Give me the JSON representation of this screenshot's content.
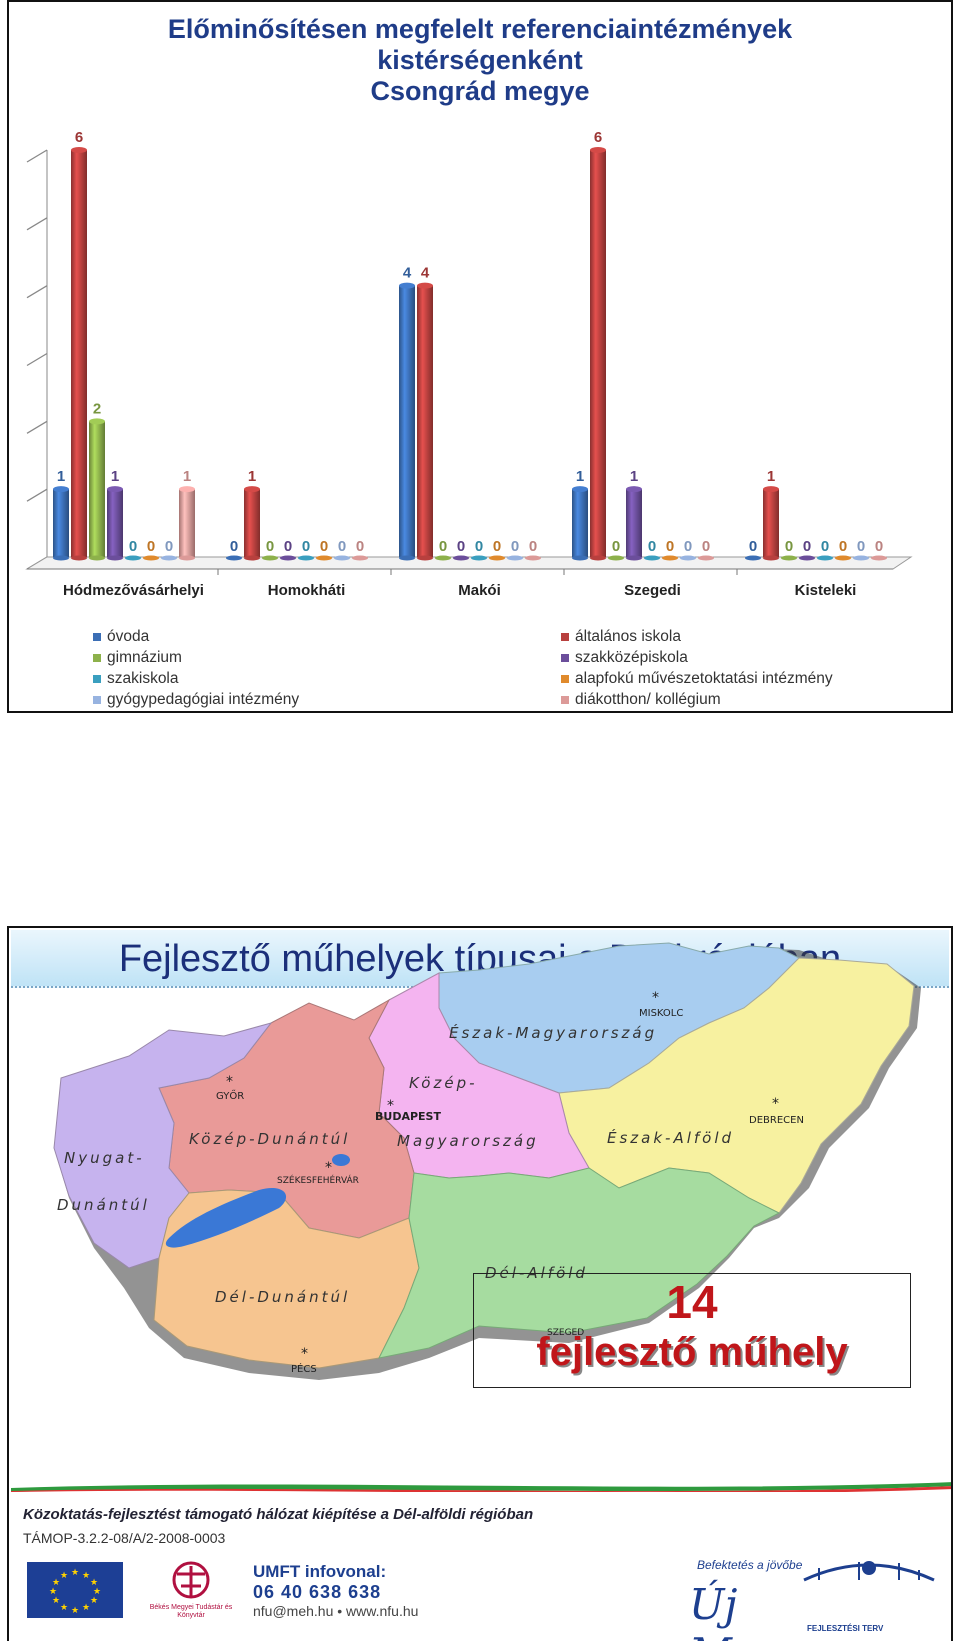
{
  "slide1": {
    "title_line1": "Előminősítésen megfelelt referenciaintézmények",
    "title_line2": "kistérségenként",
    "title_line3": "Csongrád megye"
  },
  "chart_data": {
    "type": "bar",
    "categories": [
      "Hódmezővásárhelyi",
      "Homokháti",
      "Makói",
      "Szegedi",
      "Kisteleki"
    ],
    "series": [
      {
        "name": "óvoda",
        "color": "#3b6eb5",
        "values": [
          1,
          0,
          4,
          1,
          0
        ]
      },
      {
        "name": "általános iskola",
        "color": "#b8403e",
        "values": [
          6,
          1,
          4,
          6,
          1
        ]
      },
      {
        "name": "gimnázium",
        "color": "#8db14b",
        "values": [
          2,
          0,
          0,
          0,
          0
        ]
      },
      {
        "name": "szakközépiskola",
        "color": "#6b4e9b",
        "values": [
          1,
          0,
          0,
          1,
          0
        ]
      },
      {
        "name": "szakiskola",
        "color": "#3a9fbf",
        "values": [
          0,
          0,
          0,
          0,
          0
        ]
      },
      {
        "name": "alapfokú művészetoktatási intézmény",
        "color": "#e08a2c",
        "values": [
          0,
          0,
          0,
          0,
          0
        ]
      },
      {
        "name": "gyógypedagógiai intézmény",
        "color": "#97b3e0",
        "values": [
          0,
          0,
          0,
          0,
          0
        ]
      },
      {
        "name": "diákotthon/ kollégium",
        "color": "#dc9a98",
        "values": [
          1,
          0,
          0,
          0,
          0
        ]
      }
    ],
    "ylim": [
      0,
      6
    ],
    "grid": false,
    "legend_position": "bottom"
  },
  "legend_columns": {
    "left": [
      0,
      2,
      4,
      6
    ],
    "right": [
      1,
      3,
      5,
      7
    ]
  },
  "slide2": {
    "title": "Fejlesztő műhelyek típusai a DA-i régióban",
    "regions": [
      {
        "name": "Észak-Magyarország",
        "color": "#a8cdf0"
      },
      {
        "name": "Észak-Alföld",
        "color": "#f7f1a0"
      },
      {
        "name": "Közép-Magyarország",
        "color": "#f4b4f0"
      },
      {
        "name": "Közép-Dunántúl",
        "color": "#e99a98"
      },
      {
        "name": "Nyugat-Dunántúl",
        "color": "#c6b3ee"
      },
      {
        "name": "Dél-Dunántúl",
        "color": "#f6c590"
      },
      {
        "name": "Dél-Alföld",
        "color": "#a6dca0"
      }
    ],
    "region_label_north": "Észak-Magyarország",
    "region_label_northplain": "Észak-Alföld",
    "region_label_central1": "Közép-",
    "region_label_central2": "Magyarország",
    "region_label_centraltrans": "Közép-Dunántúl",
    "region_label_west1": "Nyugat-",
    "region_label_west2": "Dunántúl",
    "region_label_southtrans": "Dél-Dunántúl",
    "region_label_southplain": "Dél-Alföld",
    "cities": {
      "miskolc": "MISKOLC",
      "gyor": "GYŐR",
      "budapest": "BUDAPEST",
      "debrecen": "DEBRECEN",
      "szekesfehervar": "SZÉKESFEHÉRVÁR",
      "szeged": "SZEGED",
      "pecs": "PÉCS"
    },
    "callout_number": "14",
    "callout_text": "fejlesztő műhely",
    "footer_line1": "Közoktatás-fejlesztést támogató hálózat kiépítése a Dél-alföldi régióban",
    "footer_line2": "TÁMOP-3.2.2-08/A/2-2008-0003",
    "bekes_text": "Békés Megyei Tudástár és Könyvtár",
    "umft_title": "UMFT infovonal:",
    "umft_phone": "06 40 638 638",
    "umft_web": "nfu@meh.hu  •  www.nfu.hu",
    "ujm_small": "Befektetés a jövőbe",
    "ujm_main": "Új Magyarország",
    "ujm_sub": "FEJLESZTÉSI TERV"
  }
}
